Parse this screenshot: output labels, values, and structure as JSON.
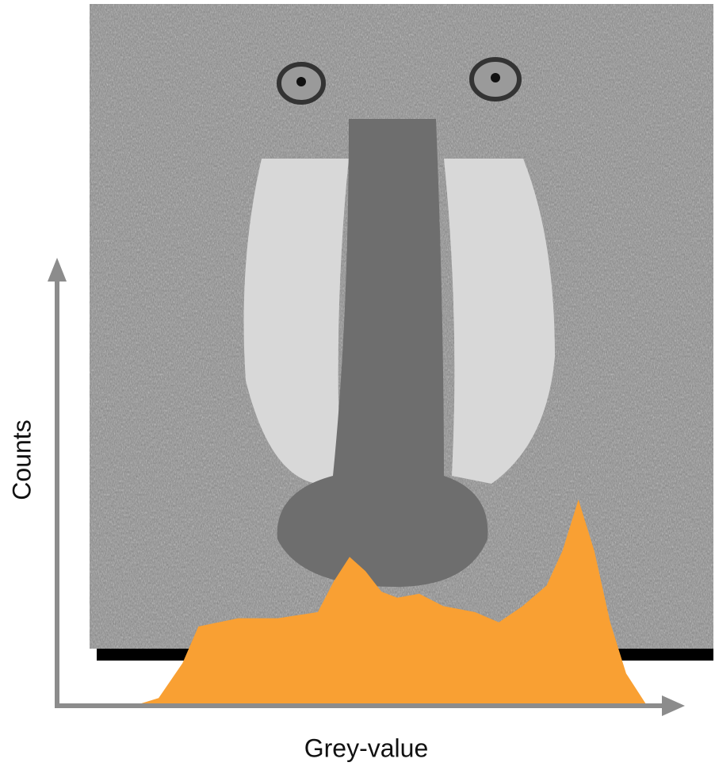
{
  "chart_data": {
    "type": "area",
    "x_label": "Grey-value",
    "y_label": "Counts",
    "x": [
      0,
      10,
      22,
      30,
      50,
      70,
      90,
      98,
      106,
      114,
      122,
      130,
      141,
      153,
      169,
      181,
      193,
      205,
      213,
      221,
      229,
      237,
      245,
      255
    ],
    "values": [
      0,
      3,
      20,
      38,
      42,
      42,
      45,
      60,
      72,
      65,
      55,
      52,
      54,
      48,
      45,
      40,
      48,
      58,
      75,
      100,
      75,
      40,
      15,
      0
    ],
    "color": "#f9a033",
    "xlim": [
      0,
      255
    ],
    "ylim": [
      0,
      100
    ]
  }
}
